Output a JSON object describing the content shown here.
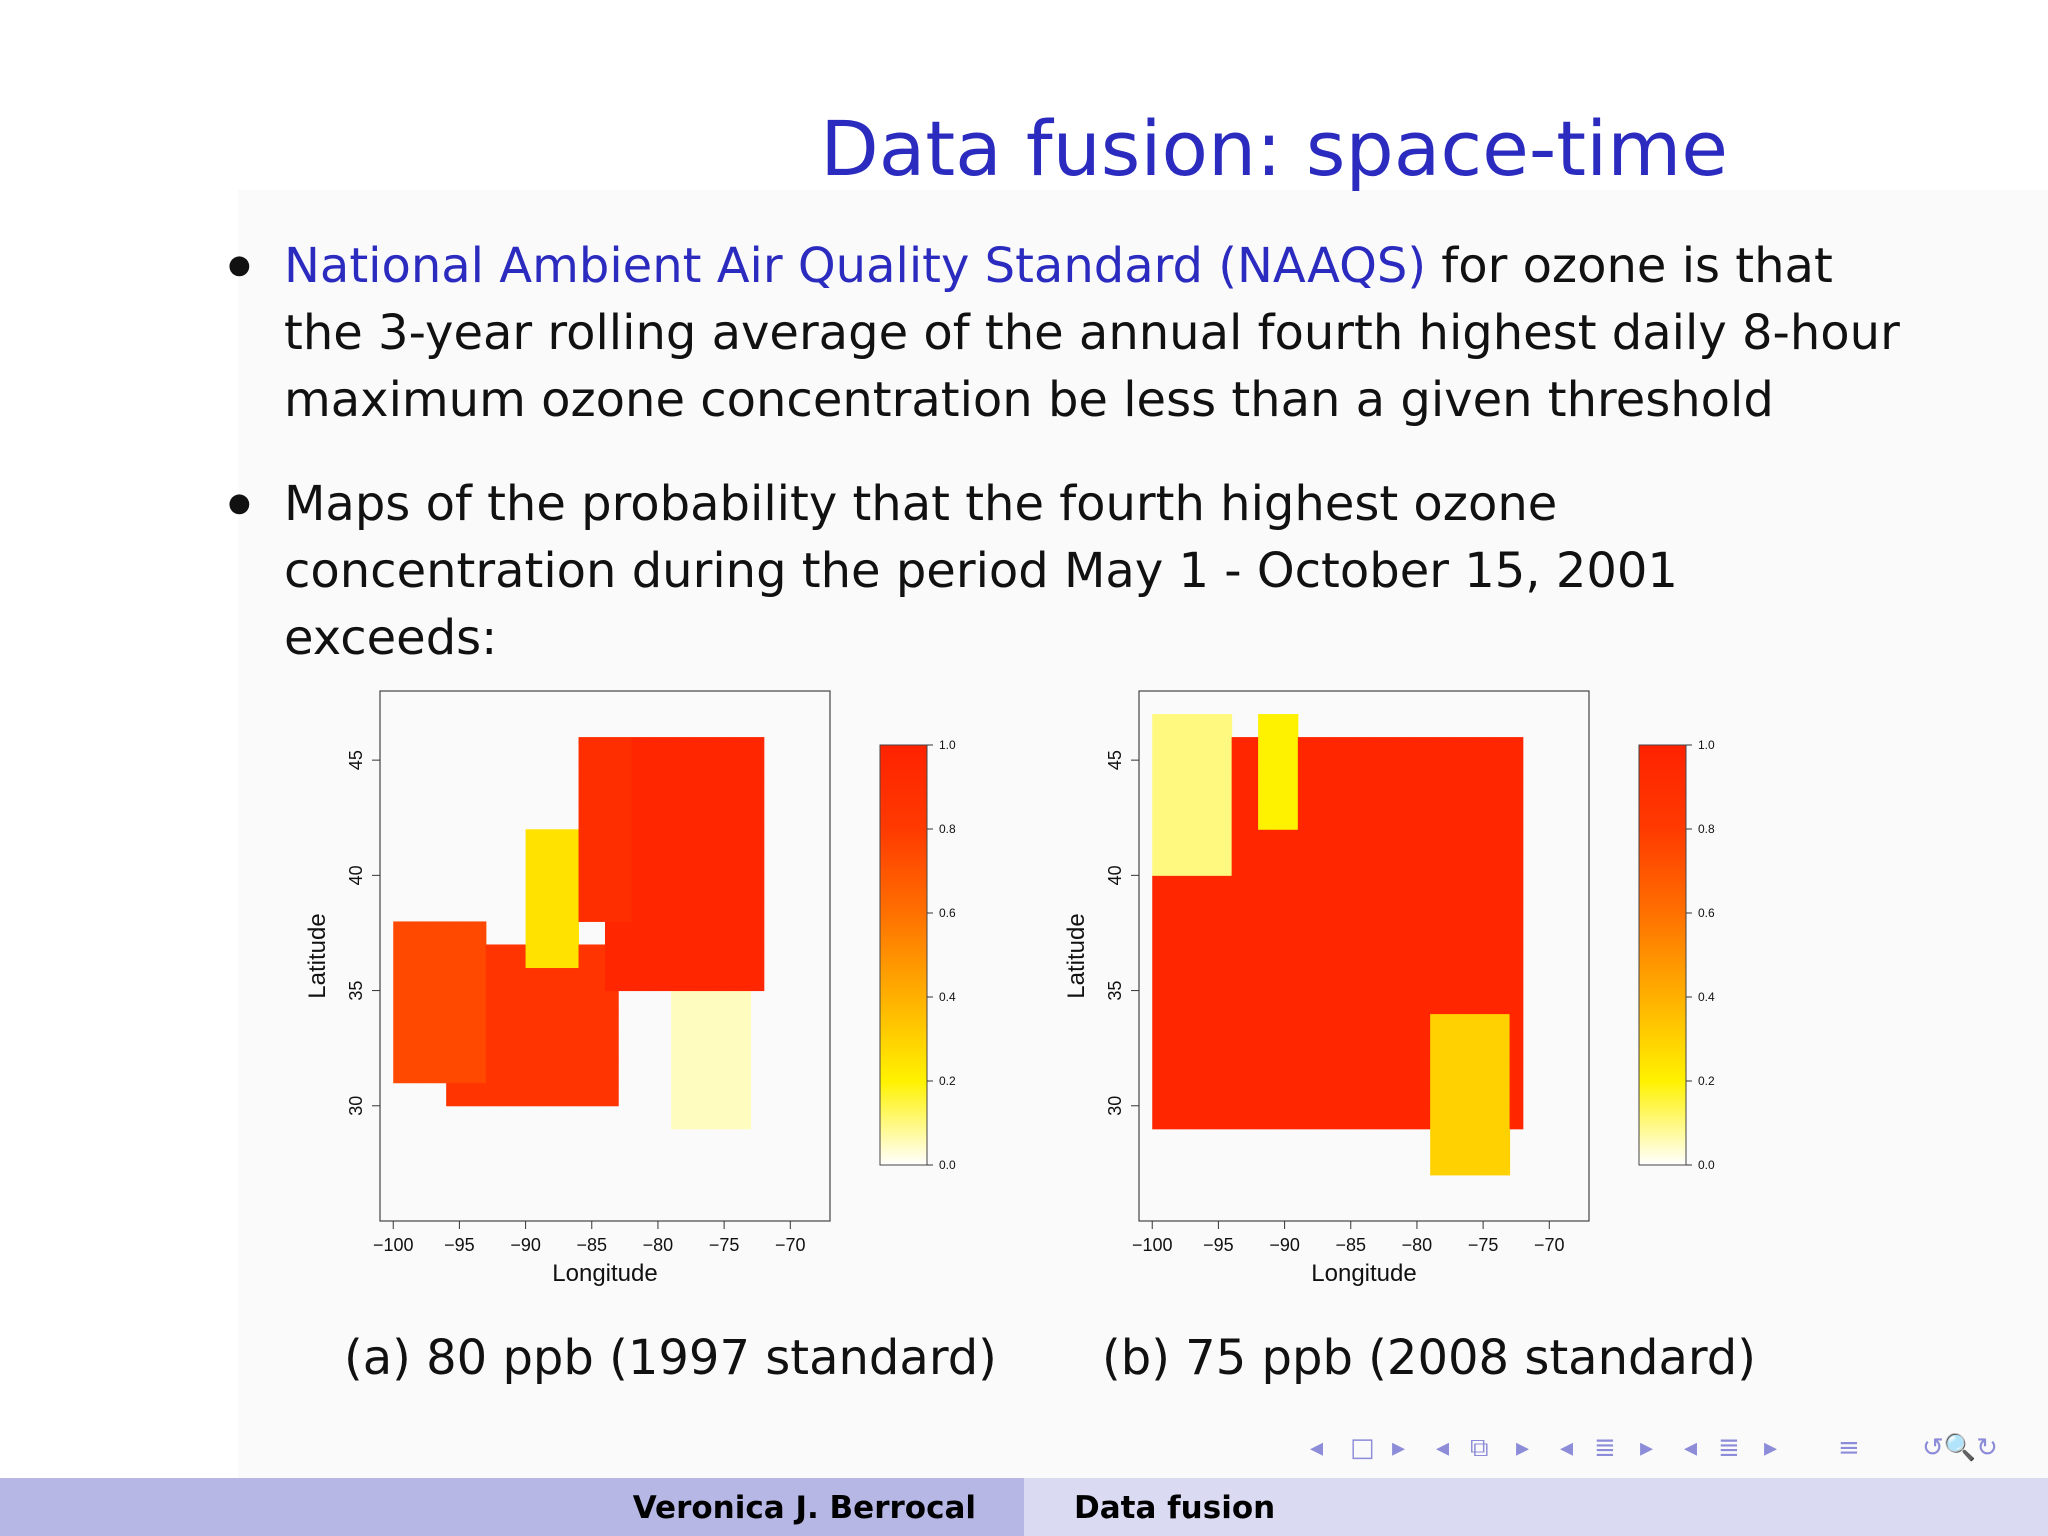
{
  "title": "Data fusion: space-time",
  "bullets": [
    {
      "highlight": "National Ambient Air Quality Standard (NAAQS)",
      "rest": " for ozone is that the 3-year rolling average of the annual fourth highest daily 8-hour maximum ozone concentration be less than a given threshold"
    },
    {
      "highlight": "",
      "rest": "Maps of the probability that the fourth highest ozone concentration during the period May 1 - October 15, 2001 exceeds:"
    }
  ],
  "chart_data": [
    {
      "type": "heatmap",
      "caption": "(a) 80 ppb (1997 standard)",
      "xlabel": "Longitude",
      "ylabel": "Latitude",
      "xlim": [
        -101,
        -67
      ],
      "ylim": [
        25,
        48
      ],
      "xticks": [
        "−100",
        "−95",
        "−90",
        "−85",
        "−80",
        "−75",
        "−70"
      ],
      "xtick_values": [
        -100,
        -95,
        -90,
        -85,
        -80,
        -75,
        -70
      ],
      "yticks": [
        "30",
        "35",
        "40",
        "45"
      ],
      "ytick_values": [
        30,
        35,
        40,
        45
      ],
      "colorbar": {
        "min": 0.0,
        "max": 1.0,
        "labels": [
          "0.0",
          "0.2",
          "0.4",
          "0.6",
          "0.8",
          "1.0"
        ],
        "colors": [
          "#ffffff",
          "#fff200",
          "#ffb000",
          "#ff7000",
          "#ff3a00",
          "#ff2200"
        ]
      },
      "regions": [
        {
          "lon": [
            -96,
            -83
          ],
          "lat": [
            30,
            37
          ],
          "p": 0.85
        },
        {
          "lon": [
            -84,
            -72
          ],
          "lat": [
            35,
            46
          ],
          "p": 0.97
        },
        {
          "lon": [
            -86,
            -82
          ],
          "lat": [
            38,
            46
          ],
          "p": 0.9
        },
        {
          "lon": [
            -100,
            -93
          ],
          "lat": [
            31,
            38
          ],
          "p": 0.75
        },
        {
          "lon": [
            -79,
            -73
          ],
          "lat": [
            29,
            35
          ],
          "p": 0.05
        },
        {
          "lon": [
            -90,
            -86
          ],
          "lat": [
            36,
            42
          ],
          "p": 0.25
        }
      ]
    },
    {
      "type": "heatmap",
      "caption": "(b) 75 ppb (2008 standard)",
      "xlabel": "Longitude",
      "ylabel": "Latitude",
      "xlim": [
        -101,
        -67
      ],
      "ylim": [
        25,
        48
      ],
      "xticks": [
        "−100",
        "−95",
        "−90",
        "−85",
        "−80",
        "−75",
        "−70"
      ],
      "xtick_values": [
        -100,
        -95,
        -90,
        -85,
        -80,
        -75,
        -70
      ],
      "yticks": [
        "30",
        "35",
        "40",
        "45"
      ],
      "ytick_values": [
        30,
        35,
        40,
        45
      ],
      "colorbar": {
        "min": 0.0,
        "max": 1.0,
        "labels": [
          "0.0",
          "0.2",
          "0.4",
          "0.6",
          "0.8",
          "1.0"
        ],
        "colors": [
          "#ffffff",
          "#fff200",
          "#ffb000",
          "#ff7000",
          "#ff3a00",
          "#ff2200"
        ]
      },
      "regions": [
        {
          "lon": [
            -100,
            -72
          ],
          "lat": [
            29,
            46
          ],
          "p": 0.97
        },
        {
          "lon": [
            -79,
            -73
          ],
          "lat": [
            27,
            34
          ],
          "p": 0.3
        },
        {
          "lon": [
            -100,
            -94
          ],
          "lat": [
            40,
            47
          ],
          "p": 0.1
        },
        {
          "lon": [
            -92,
            -89
          ],
          "lat": [
            42,
            47
          ],
          "p": 0.2
        }
      ]
    }
  ],
  "nav": {
    "icons": [
      "nav-left-arrow-icon",
      "frame-box-icon",
      "nav-right-arrow-icon",
      "subsection-icon",
      "section-icon",
      "align-icon",
      "search-zoom-icon"
    ]
  },
  "footer": {
    "author": "Veronica J. Berrocal",
    "short_title": "Data fusion"
  }
}
